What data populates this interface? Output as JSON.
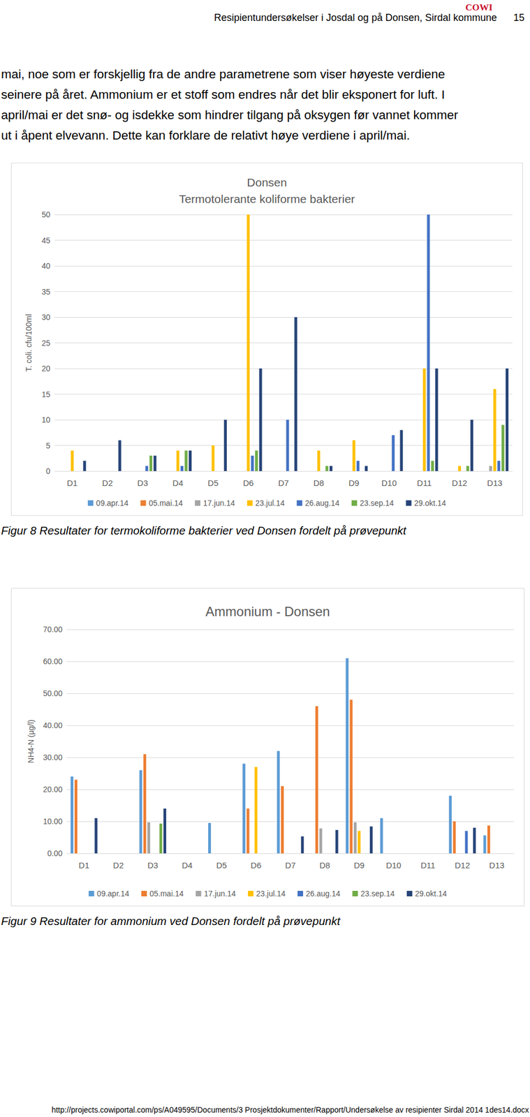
{
  "header": {
    "logo": "COWI",
    "title": "Resipientundersøkelser i Josdal og på Donsen, Sirdal kommune",
    "page_number": "15"
  },
  "paragraph": [
    "mai, noe som er forskjellig fra de andre parametrene som viser høyeste verdiene",
    "seinere på året. Ammonium er et stoff som endres når det blir eksponert for luft. I",
    "april/mai er det snø- og isdekke som hindrer tilgang på oksygen før vannet kommer",
    "ut i åpent elvevann. Dette kan forklare de relativt høye verdiene i april/mai."
  ],
  "chart_data": [
    {
      "type": "bar",
      "title": "Donsen\nTermotolerante koliforme bakterier",
      "ylabel": "T. coli. cfu/100ml",
      "caption": "Figur 8 Resultater for termokoliforme bakterier ved Donsen fordelt på prøvepunkt",
      "categories": [
        "D1",
        "D2",
        "D3",
        "D4",
        "D5",
        "D6",
        "D7",
        "D8",
        "D9",
        "D10",
        "D11",
        "D12",
        "D13"
      ],
      "ylim": [
        0,
        50
      ],
      "yticks": [
        0,
        5,
        10,
        15,
        20,
        25,
        30,
        35,
        40,
        45,
        50
      ],
      "grid": true,
      "legend": "bottom",
      "series": [
        {
          "name": "09.apr.14",
          "color": "#5b9bd5",
          "values": [
            null,
            null,
            null,
            null,
            null,
            null,
            null,
            null,
            null,
            null,
            null,
            null,
            null
          ]
        },
        {
          "name": "05.mai.14",
          "color": "#ed7d31",
          "values": [
            null,
            null,
            null,
            null,
            null,
            null,
            null,
            null,
            null,
            null,
            null,
            null,
            null
          ]
        },
        {
          "name": "17.jun.14",
          "color": "#a5a5a5",
          "values": [
            null,
            null,
            null,
            null,
            null,
            null,
            null,
            null,
            null,
            null,
            null,
            null,
            1
          ]
        },
        {
          "name": "23.jul.14",
          "color": "#ffc000",
          "values": [
            4,
            null,
            null,
            4,
            5,
            50,
            null,
            4,
            6,
            null,
            20,
            1,
            16
          ]
        },
        {
          "name": "26.aug.14",
          "color": "#4472c4",
          "values": [
            null,
            null,
            1,
            1,
            null,
            3,
            10,
            null,
            2,
            7,
            50,
            null,
            2
          ]
        },
        {
          "name": "23.sep.14",
          "color": "#70ad47",
          "values": [
            null,
            null,
            3,
            4,
            null,
            4,
            null,
            1,
            null,
            null,
            2,
            1,
            9
          ]
        },
        {
          "name": "29.okt.14",
          "color": "#264478",
          "values": [
            2,
            6,
            3,
            4,
            10,
            20,
            30,
            1,
            1,
            8,
            20,
            10,
            20
          ]
        }
      ]
    },
    {
      "type": "bar",
      "title": "Ammonium - Donsen",
      "ylabel": "NH4-N (µg/l)",
      "caption": "Figur 9 Resultater for ammonium ved Donsen fordelt på prøvepunkt",
      "categories": [
        "D1",
        "D2",
        "D3",
        "D4",
        "D5",
        "D6",
        "D7",
        "D8",
        "D9",
        "D10",
        "D11",
        "D12",
        "D13"
      ],
      "ylim": [
        0,
        70
      ],
      "yticks": [
        {
          "value": 0,
          "label": "0.00"
        },
        {
          "value": 10,
          "label": "10.00"
        },
        {
          "value": 20,
          "label": "20.00"
        },
        {
          "value": 30,
          "label": "30.00"
        },
        {
          "value": 40,
          "label": "40.00"
        },
        {
          "value": 50,
          "label": "50.00"
        },
        {
          "value": 60,
          "label": "60.00"
        },
        {
          "value": 70,
          "label": "70.00"
        }
      ],
      "grid": true,
      "legend": "bottom",
      "series": [
        {
          "name": "09.apr.14",
          "color": "#5b9bd5",
          "values": [
            24,
            null,
            26,
            null,
            9.5,
            28,
            32,
            null,
            61,
            11,
            null,
            18,
            5.6
          ]
        },
        {
          "name": "05.mai.14",
          "color": "#ed7d31",
          "values": [
            23,
            null,
            31,
            null,
            null,
            14,
            21,
            46,
            48,
            null,
            null,
            10,
            8.7
          ]
        },
        {
          "name": "17.jun.14",
          "color": "#a5a5a5",
          "values": [
            null,
            null,
            9.7,
            null,
            null,
            null,
            null,
            7.8,
            9.7,
            null,
            null,
            null,
            null
          ]
        },
        {
          "name": "23.jul.14",
          "color": "#ffc000",
          "values": [
            null,
            null,
            null,
            null,
            null,
            27,
            null,
            null,
            7,
            null,
            null,
            null,
            null
          ]
        },
        {
          "name": "26.aug.14",
          "color": "#4472c4",
          "values": [
            null,
            null,
            null,
            null,
            null,
            null,
            null,
            null,
            null,
            null,
            null,
            7,
            null
          ]
        },
        {
          "name": "23.sep.14",
          "color": "#70ad47",
          "values": [
            null,
            null,
            9.3,
            null,
            null,
            null,
            null,
            null,
            null,
            null,
            null,
            null,
            null
          ]
        },
        {
          "name": "29.okt.14",
          "color": "#264478",
          "values": [
            11,
            null,
            14,
            null,
            null,
            null,
            5.3,
            7.3,
            8.4,
            null,
            null,
            8,
            null
          ]
        }
      ]
    }
  ],
  "footer": "http://projects.cowiportal.com/ps/A049595/Documents/3 Prosjektdokumenter/Rapport/Undersøkelse av resipienter Sirdal 2014 1des14.docx"
}
